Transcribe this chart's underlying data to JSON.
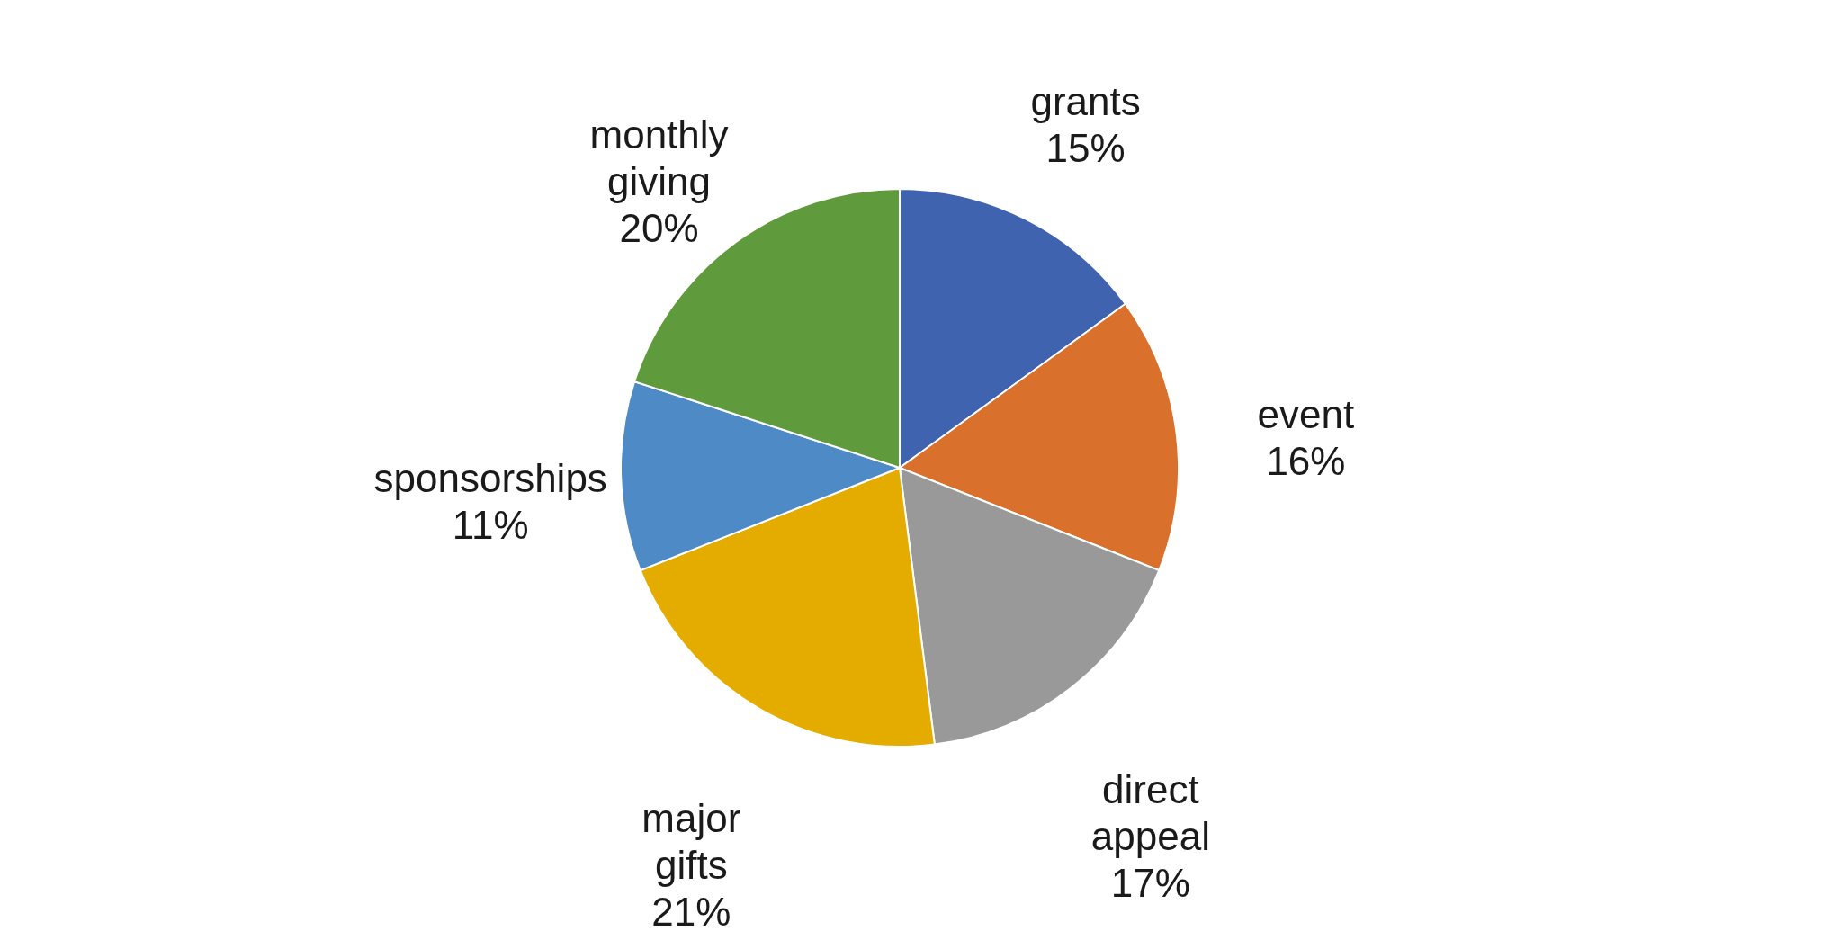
{
  "chart_data": {
    "type": "pie",
    "categories": [
      "grants",
      "event",
      "direct appeal",
      "major gifts",
      "sponsorships",
      "monthly giving"
    ],
    "values": [
      15,
      16,
      17,
      21,
      11,
      20
    ],
    "colors": [
      "#4063b0",
      "#d9702c",
      "#999999",
      "#e5ac00",
      "#4e8ac6",
      "#5f9a3c"
    ],
    "value_labels": [
      "15%",
      "16%",
      "17%",
      "21%",
      "11%",
      "20%"
    ],
    "legend": false
  }
}
